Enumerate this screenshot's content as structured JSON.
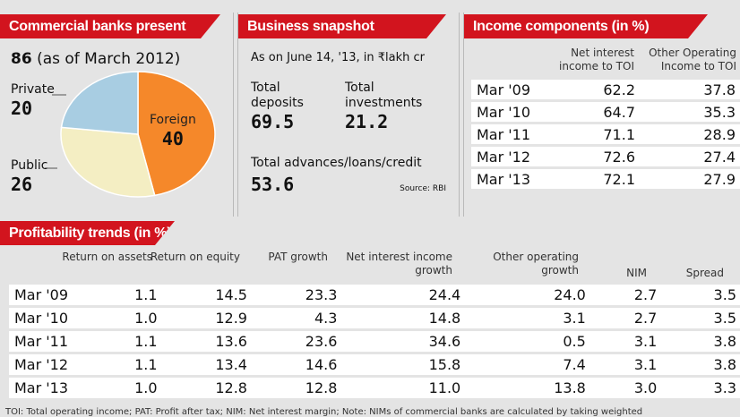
{
  "banks": {
    "title": "Commercial banks present",
    "total": "86",
    "total_note": "(as of March 2012)"
  },
  "chart_data": {
    "type": "pie",
    "title": "Commercial banks present",
    "categories": [
      "Foreign",
      "Public",
      "Private"
    ],
    "values": [
      40,
      26,
      20
    ],
    "colors": [
      "#f5882a",
      "#f4eec3",
      "#a8cde2"
    ]
  },
  "snapshot": {
    "title": "Business snapshot",
    "subtitle": "As on June 14, '13, in ₹lakh cr",
    "deposits_label": "Total deposits",
    "deposits": "69.5",
    "investments_label": "Total investments",
    "investments": "21.2",
    "advances_label": "Total advances/loans/credit",
    "advances": "53.6",
    "source": "Source: RBI"
  },
  "income": {
    "title": "Income components (in %)",
    "col1": "Net interest income to TOI",
    "col2": "Other Operating Income to TOI",
    "rows": [
      [
        "Mar '09",
        "62.2",
        "37.8"
      ],
      [
        "Mar '10",
        "64.7",
        "35.3"
      ],
      [
        "Mar '11",
        "71.1",
        "28.9"
      ],
      [
        "Mar '12",
        "72.6",
        "27.4"
      ],
      [
        "Mar '13",
        "72.1",
        "27.9"
      ]
    ]
  },
  "profit": {
    "title": "Profitability trends (in %)",
    "headers": [
      "Return on assets",
      "Return on equity",
      "PAT growth",
      "Net interest income growth",
      "Other operating growth",
      "NIM",
      "Spread"
    ],
    "rows": [
      [
        "Mar '09",
        "1.1",
        "14.5",
        "23.3",
        "24.4",
        "24.0",
        "2.7",
        "3.5"
      ],
      [
        "Mar '10",
        "1.0",
        "12.9",
        "4.3",
        "14.8",
        "3.1",
        "2.7",
        "3.5"
      ],
      [
        "Mar '11",
        "1.1",
        "13.6",
        "23.6",
        "34.6",
        "0.5",
        "3.1",
        "3.8"
      ],
      [
        "Mar '12",
        "1.1",
        "13.4",
        "14.6",
        "15.8",
        "7.4",
        "3.1",
        "3.8"
      ],
      [
        "Mar '13",
        "1.0",
        "12.8",
        "12.8",
        "11.0",
        "13.8",
        "3.0",
        "3.3"
      ]
    ]
  },
  "footnote": "TOI: Total operating income; PAT: Profit after tax; NIM: Net interest margin; Note: NIMs of commercial banks are calculated by taking weighted"
}
